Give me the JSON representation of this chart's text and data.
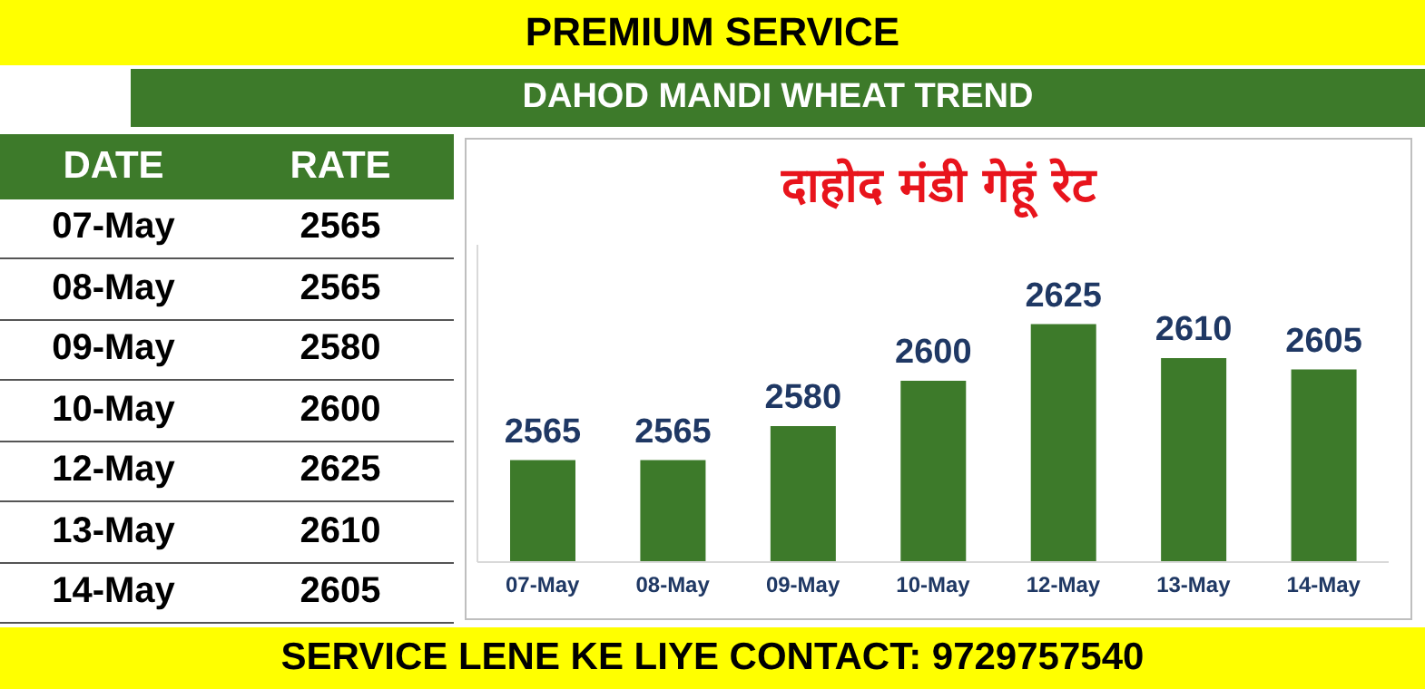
{
  "chart_data": [
    {
      "type": "bar",
      "title": "दाहोद मंडी गेहूं रेट",
      "subtitle": "DAHOD MANDI WHEAT TREND",
      "annotations": [
        "PREMIUM SERVICE",
        "SERVICE LENE KE LIYE CONTACT: 9729757540"
      ],
      "categories": [
        "07-May",
        "08-May",
        "09-May",
        "10-May",
        "12-May",
        "13-May",
        "14-May"
      ],
      "values": [
        2565,
        2565,
        2580,
        2600,
        2625,
        2610,
        2605
      ],
      "color": "#3d7a2a",
      "ylim": [
        2520,
        2660
      ],
      "tick_labels": "x",
      "data_labels": true
    },
    {
      "type": "other",
      "xlabel": "DATE",
      "ylabel": "RATE",
      "categories": [
        "07-May",
        "08-May",
        "09-May",
        "10-May",
        "12-May",
        "13-May",
        "14-May"
      ],
      "values": [
        2565,
        2565,
        2580,
        2600,
        2625,
        2610,
        2605
      ],
      "color": "#3d7a2a",
      "data_labels": true
    }
  ]
}
